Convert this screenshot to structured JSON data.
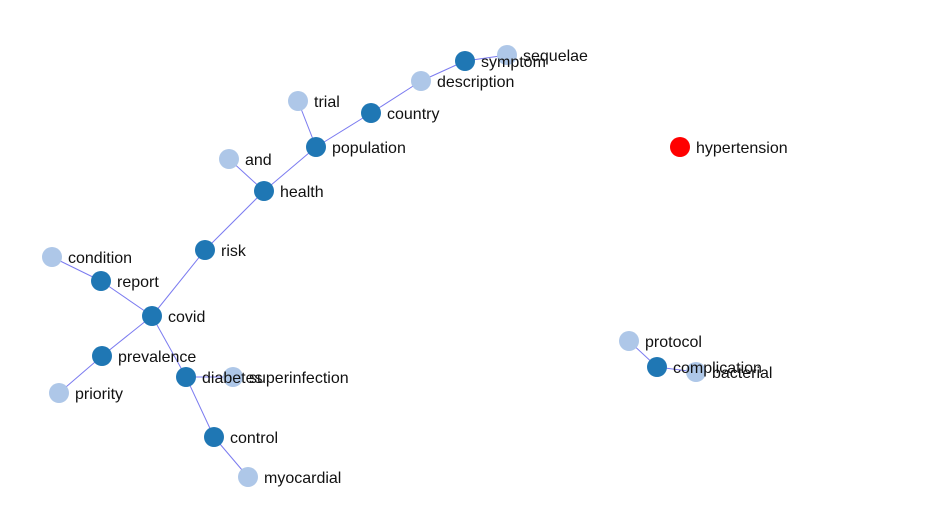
{
  "colors": {
    "primary": "#1f77b4",
    "secondary": "#aec7e8",
    "highlight": "#ff0000",
    "edge": "#7b7bf0"
  },
  "nodes": [
    {
      "id": "sequelae",
      "label": "sequelae",
      "role": "secondary"
    },
    {
      "id": "symptom",
      "label": "symptom",
      "role": "primary"
    },
    {
      "id": "description",
      "label": "description",
      "role": "secondary"
    },
    {
      "id": "trial",
      "label": "trial",
      "role": "secondary"
    },
    {
      "id": "country",
      "label": "country",
      "role": "primary"
    },
    {
      "id": "and",
      "label": "and",
      "role": "secondary"
    },
    {
      "id": "population",
      "label": "population",
      "role": "primary"
    },
    {
      "id": "health",
      "label": "health",
      "role": "primary"
    },
    {
      "id": "risk",
      "label": "risk",
      "role": "primary"
    },
    {
      "id": "condition",
      "label": "condition",
      "role": "secondary"
    },
    {
      "id": "report",
      "label": "report",
      "role": "primary"
    },
    {
      "id": "covid",
      "label": "covid",
      "role": "primary"
    },
    {
      "id": "prevalence",
      "label": "prevalence",
      "role": "primary"
    },
    {
      "id": "priority",
      "label": "priority",
      "role": "secondary"
    },
    {
      "id": "diabetes",
      "label": "diabetes",
      "role": "primary"
    },
    {
      "id": "superinfection",
      "label": "superinfection",
      "role": "secondary"
    },
    {
      "id": "control",
      "label": "control",
      "role": "primary"
    },
    {
      "id": "myocardial",
      "label": "myocardial",
      "role": "secondary"
    },
    {
      "id": "hypertension",
      "label": "hypertension",
      "role": "highlight"
    },
    {
      "id": "protocol",
      "label": "protocol",
      "role": "secondary"
    },
    {
      "id": "complication",
      "label": "complication",
      "role": "primary"
    },
    {
      "id": "bacterial",
      "label": "bacterial",
      "role": "secondary"
    }
  ],
  "edges": [
    [
      "sequelae",
      "symptom"
    ],
    [
      "symptom",
      "description"
    ],
    [
      "description",
      "country"
    ],
    [
      "country",
      "population"
    ],
    [
      "trial",
      "population"
    ],
    [
      "population",
      "health"
    ],
    [
      "and",
      "health"
    ],
    [
      "health",
      "risk"
    ],
    [
      "risk",
      "covid"
    ],
    [
      "condition",
      "report"
    ],
    [
      "report",
      "covid"
    ],
    [
      "covid",
      "prevalence"
    ],
    [
      "prevalence",
      "priority"
    ],
    [
      "covid",
      "diabetes"
    ],
    [
      "diabetes",
      "superinfection"
    ],
    [
      "diabetes",
      "control"
    ],
    [
      "control",
      "myocardial"
    ],
    [
      "protocol",
      "complication"
    ],
    [
      "complication",
      "bacterial"
    ]
  ]
}
